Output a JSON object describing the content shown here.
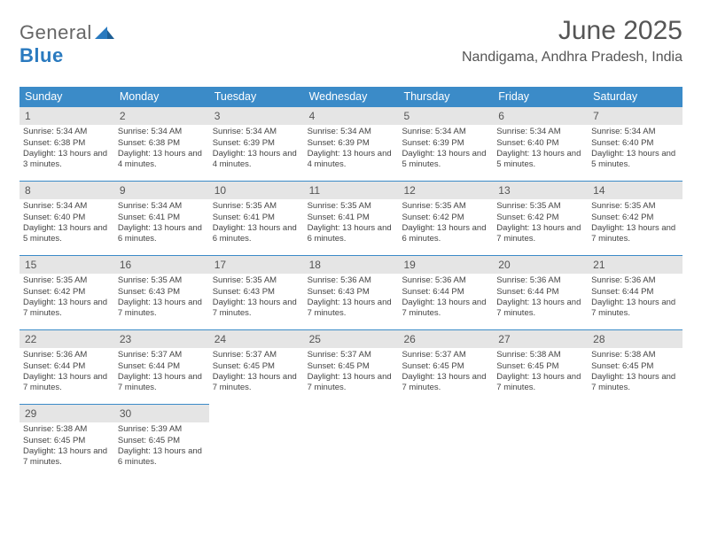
{
  "logo": {
    "text1": "General",
    "text2": "Blue"
  },
  "title": "June 2025",
  "location": "Nandigama, Andhra Pradesh, India",
  "colors": {
    "header_bg": "#3b8bc8",
    "header_text": "#ffffff",
    "daynum_bg": "#e5e5e5",
    "daynum_border": "#3b8bc8",
    "body_text": "#444444",
    "title_color": "#555555"
  },
  "weekdays": [
    "Sunday",
    "Monday",
    "Tuesday",
    "Wednesday",
    "Thursday",
    "Friday",
    "Saturday"
  ],
  "days": [
    {
      "n": 1,
      "sunrise": "5:34 AM",
      "sunset": "6:38 PM",
      "daylight": "13 hours and 3 minutes."
    },
    {
      "n": 2,
      "sunrise": "5:34 AM",
      "sunset": "6:38 PM",
      "daylight": "13 hours and 4 minutes."
    },
    {
      "n": 3,
      "sunrise": "5:34 AM",
      "sunset": "6:39 PM",
      "daylight": "13 hours and 4 minutes."
    },
    {
      "n": 4,
      "sunrise": "5:34 AM",
      "sunset": "6:39 PM",
      "daylight": "13 hours and 4 minutes."
    },
    {
      "n": 5,
      "sunrise": "5:34 AM",
      "sunset": "6:39 PM",
      "daylight": "13 hours and 5 minutes."
    },
    {
      "n": 6,
      "sunrise": "5:34 AM",
      "sunset": "6:40 PM",
      "daylight": "13 hours and 5 minutes."
    },
    {
      "n": 7,
      "sunrise": "5:34 AM",
      "sunset": "6:40 PM",
      "daylight": "13 hours and 5 minutes."
    },
    {
      "n": 8,
      "sunrise": "5:34 AM",
      "sunset": "6:40 PM",
      "daylight": "13 hours and 5 minutes."
    },
    {
      "n": 9,
      "sunrise": "5:34 AM",
      "sunset": "6:41 PM",
      "daylight": "13 hours and 6 minutes."
    },
    {
      "n": 10,
      "sunrise": "5:35 AM",
      "sunset": "6:41 PM",
      "daylight": "13 hours and 6 minutes."
    },
    {
      "n": 11,
      "sunrise": "5:35 AM",
      "sunset": "6:41 PM",
      "daylight": "13 hours and 6 minutes."
    },
    {
      "n": 12,
      "sunrise": "5:35 AM",
      "sunset": "6:42 PM",
      "daylight": "13 hours and 6 minutes."
    },
    {
      "n": 13,
      "sunrise": "5:35 AM",
      "sunset": "6:42 PM",
      "daylight": "13 hours and 7 minutes."
    },
    {
      "n": 14,
      "sunrise": "5:35 AM",
      "sunset": "6:42 PM",
      "daylight": "13 hours and 7 minutes."
    },
    {
      "n": 15,
      "sunrise": "5:35 AM",
      "sunset": "6:42 PM",
      "daylight": "13 hours and 7 minutes."
    },
    {
      "n": 16,
      "sunrise": "5:35 AM",
      "sunset": "6:43 PM",
      "daylight": "13 hours and 7 minutes."
    },
    {
      "n": 17,
      "sunrise": "5:35 AM",
      "sunset": "6:43 PM",
      "daylight": "13 hours and 7 minutes."
    },
    {
      "n": 18,
      "sunrise": "5:36 AM",
      "sunset": "6:43 PM",
      "daylight": "13 hours and 7 minutes."
    },
    {
      "n": 19,
      "sunrise": "5:36 AM",
      "sunset": "6:44 PM",
      "daylight": "13 hours and 7 minutes."
    },
    {
      "n": 20,
      "sunrise": "5:36 AM",
      "sunset": "6:44 PM",
      "daylight": "13 hours and 7 minutes."
    },
    {
      "n": 21,
      "sunrise": "5:36 AM",
      "sunset": "6:44 PM",
      "daylight": "13 hours and 7 minutes."
    },
    {
      "n": 22,
      "sunrise": "5:36 AM",
      "sunset": "6:44 PM",
      "daylight": "13 hours and 7 minutes."
    },
    {
      "n": 23,
      "sunrise": "5:37 AM",
      "sunset": "6:44 PM",
      "daylight": "13 hours and 7 minutes."
    },
    {
      "n": 24,
      "sunrise": "5:37 AM",
      "sunset": "6:45 PM",
      "daylight": "13 hours and 7 minutes."
    },
    {
      "n": 25,
      "sunrise": "5:37 AM",
      "sunset": "6:45 PM",
      "daylight": "13 hours and 7 minutes."
    },
    {
      "n": 26,
      "sunrise": "5:37 AM",
      "sunset": "6:45 PM",
      "daylight": "13 hours and 7 minutes."
    },
    {
      "n": 27,
      "sunrise": "5:38 AM",
      "sunset": "6:45 PM",
      "daylight": "13 hours and 7 minutes."
    },
    {
      "n": 28,
      "sunrise": "5:38 AM",
      "sunset": "6:45 PM",
      "daylight": "13 hours and 7 minutes."
    },
    {
      "n": 29,
      "sunrise": "5:38 AM",
      "sunset": "6:45 PM",
      "daylight": "13 hours and 7 minutes."
    },
    {
      "n": 30,
      "sunrise": "5:39 AM",
      "sunset": "6:45 PM",
      "daylight": "13 hours and 6 minutes."
    }
  ],
  "labels": {
    "sunrise": "Sunrise:",
    "sunset": "Sunset:",
    "daylight": "Daylight:"
  },
  "layout": {
    "start_weekday": 0,
    "total_cells": 35
  }
}
